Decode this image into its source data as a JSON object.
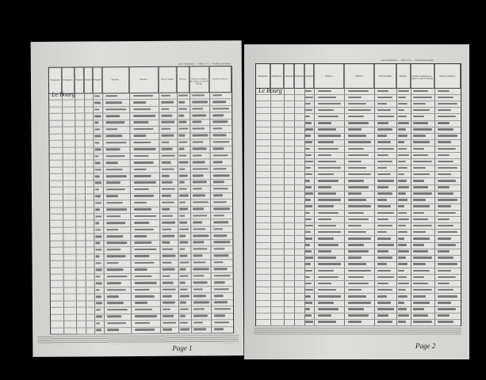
{
  "document": {
    "form_caption": "Liste Nominative. — Mod. n° 6. — Feuille intercalaire.",
    "location": "Le Bourg",
    "columns": [
      "Désignation",
      "Numéros",
      "Nom de famille",
      "Prénoms",
      "Parenté ou situation par rapport au chef de ménage",
      "Année de naissance",
      "Nationalité",
      "Profession"
    ],
    "left_page_label": "Page 1",
    "right_page_label": "Page 2"
  }
}
